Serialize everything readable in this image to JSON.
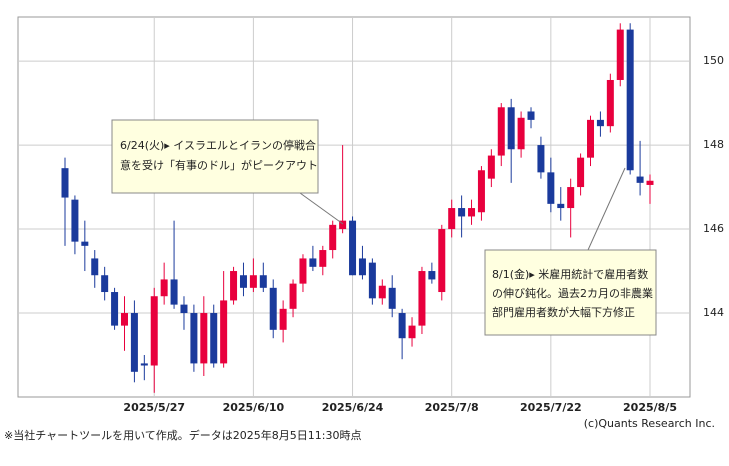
{
  "chart_data": {
    "type": "candlestick",
    "categories": [
      null,
      null,
      null,
      null,
      null,
      null,
      null,
      null,
      null,
      "2025/5/27",
      null,
      null,
      null,
      null,
      null,
      null,
      null,
      null,
      null,
      "2025/6/10",
      null,
      null,
      null,
      null,
      null,
      null,
      null,
      null,
      null,
      "2025/6/24",
      null,
      null,
      null,
      null,
      null,
      null,
      null,
      null,
      null,
      "2025/7/8",
      null,
      null,
      null,
      null,
      null,
      null,
      null,
      null,
      null,
      "2025/7/22",
      null,
      null,
      null,
      null,
      null,
      null,
      null,
      null,
      null,
      "2025/8/5"
    ],
    "open": [
      147.45,
      146.7,
      145.7,
      145.3,
      144.9,
      144.5,
      143.7,
      144.0,
      142.8,
      142.75,
      144.4,
      144.8,
      144.2,
      144.0,
      142.8,
      144.0,
      142.8,
      144.3,
      144.9,
      144.6,
      144.9,
      144.6,
      143.6,
      144.1,
      144.7,
      145.3,
      145.1,
      145.5,
      146.0,
      146.2,
      145.3,
      145.2,
      144.35,
      144.6,
      144.0,
      143.4,
      143.7,
      145.0,
      144.5,
      146.0,
      146.5,
      146.3,
      146.4,
      147.2,
      147.75,
      148.9,
      147.9,
      148.8,
      148.0,
      147.35,
      146.6,
      146.5,
      147.0,
      147.7,
      148.6,
      148.45,
      149.55,
      150.75,
      147.25,
      147.05
    ],
    "high": [
      147.7,
      146.8,
      146.2,
      145.5,
      145.1,
      144.6,
      144.4,
      144.3,
      143.0,
      144.6,
      145.2,
      146.2,
      144.4,
      144.2,
      144.4,
      144.2,
      145.0,
      145.1,
      145.2,
      145.3,
      145.2,
      144.8,
      144.3,
      144.8,
      145.4,
      145.6,
      145.6,
      146.2,
      148.0,
      146.3,
      145.6,
      145.3,
      144.8,
      144.9,
      144.1,
      143.9,
      145.1,
      145.2,
      146.1,
      146.7,
      146.8,
      146.7,
      147.5,
      147.9,
      149.0,
      149.1,
      148.8,
      148.9,
      148.2,
      147.7,
      147.0,
      147.2,
      147.8,
      148.7,
      148.8,
      149.7,
      150.9,
      150.9,
      148.1,
      147.3
    ],
    "low": [
      145.6,
      145.4,
      145.0,
      144.6,
      144.3,
      143.6,
      143.1,
      142.35,
      142.4,
      142.1,
      144.2,
      144.1,
      143.6,
      142.6,
      142.5,
      142.7,
      142.7,
      144.2,
      144.4,
      144.5,
      144.5,
      143.4,
      143.3,
      143.9,
      144.5,
      145.0,
      144.9,
      145.3,
      145.9,
      144.9,
      144.8,
      144.2,
      144.2,
      143.9,
      142.9,
      143.2,
      143.5,
      144.7,
      144.3,
      145.8,
      145.8,
      146.1,
      146.2,
      147.0,
      147.5,
      147.1,
      147.7,
      148.4,
      147.2,
      146.4,
      146.2,
      145.8,
      146.8,
      147.5,
      148.2,
      148.3,
      149.4,
      147.3,
      146.8,
      146.6
    ],
    "close": [
      146.75,
      145.7,
      145.6,
      144.9,
      144.5,
      143.7,
      144.0,
      142.6,
      142.75,
      144.4,
      144.8,
      144.2,
      144.0,
      142.8,
      144.0,
      142.8,
      144.3,
      145.0,
      144.6,
      144.9,
      144.6,
      143.6,
      144.1,
      144.7,
      145.3,
      145.1,
      145.5,
      146.1,
      146.2,
      144.9,
      144.9,
      144.35,
      144.65,
      144.1,
      143.4,
      143.7,
      145.0,
      144.8,
      146.0,
      146.5,
      146.3,
      146.5,
      147.4,
      147.75,
      148.9,
      147.9,
      148.65,
      148.6,
      147.35,
      146.6,
      146.5,
      147.0,
      147.7,
      148.6,
      148.45,
      149.55,
      150.75,
      147.4,
      147.1,
      147.15
    ],
    "up_color": "#e8003d",
    "down_color": "#1a3a9c",
    "ylim": [
      142.0,
      151.05
    ],
    "yticks": [
      144,
      146,
      148,
      150
    ],
    "grid": true,
    "annotations": [
      {
        "lines": [
          "6/24(火)▸ イスラエルとイランの停戦合",
          "意を受け「有事のドル」がピークアウト"
        ]
      },
      {
        "lines": [
          "8/1(金)▸ 米雇用統計で雇用者数",
          "の伸び鈍化。過去2カ月の非農業",
          "部門雇用者数が大幅下方修正"
        ]
      }
    ],
    "note": "※当社チャートツールを用いて作成。データは2025年8月5日11:30時点",
    "credit": "(c)Quants Research Inc."
  }
}
